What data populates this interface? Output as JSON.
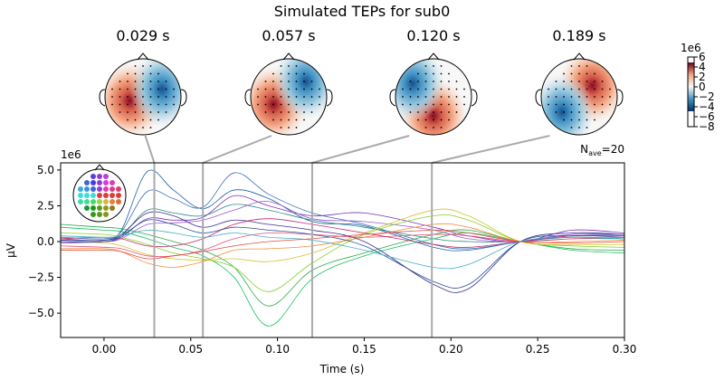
{
  "chart_data": {
    "type": "line",
    "title": "Simulated TEPs for sub0",
    "xlabel": "Time (s)",
    "ylabel": "µV",
    "y_offset_label": "1e6",
    "nave_label": "N",
    "nave_sub": "ave",
    "nave_value": "=20",
    "xlim": [
      -0.025,
      0.3
    ],
    "ylim": [
      -6.7,
      5.5
    ],
    "x_ticks": [
      "0.00",
      "0.05",
      "0.10",
      "0.15",
      "0.20",
      "0.25",
      "0.30"
    ],
    "y_ticks": [
      "5.0",
      "2.5",
      "0.0",
      "−2.5",
      "−5.0"
    ],
    "grid": false,
    "x": [
      -0.025,
      0,
      0.01,
      0.025,
      0.04,
      0.057,
      0.075,
      0.095,
      0.12,
      0.15,
      0.19,
      0.21,
      0.24,
      0.27,
      0.3
    ],
    "series": [
      {
        "color": "#1f5fa8",
        "values": [
          0.2,
          0.1,
          0.8,
          4.9,
          3.6,
          2.3,
          3.6,
          3.0,
          1.4,
          1.1,
          -0.4,
          -0.6,
          0.0,
          0.3,
          0.2
        ]
      },
      {
        "color": "#3a6fb5",
        "values": [
          0.3,
          0.2,
          0.7,
          3.5,
          3.0,
          2.4,
          4.8,
          3.3,
          2.0,
          1.2,
          -0.2,
          -0.5,
          0.0,
          0.5,
          0.4
        ]
      },
      {
        "color": "#2b8a8a",
        "values": [
          0.0,
          0.0,
          0.4,
          2.2,
          2.0,
          1.8,
          2.6,
          2.2,
          1.5,
          1.0,
          0.2,
          0.0,
          0.0,
          0.2,
          0.2
        ]
      },
      {
        "color": "#7b2fbf",
        "values": [
          -0.1,
          0.0,
          0.3,
          1.6,
          1.5,
          1.7,
          3.2,
          2.5,
          1.8,
          2.0,
          1.0,
          0.4,
          0.0,
          0.8,
          0.6
        ]
      },
      {
        "color": "#9b59d0",
        "values": [
          0.0,
          0.0,
          0.2,
          1.2,
          1.3,
          1.5,
          2.2,
          2.8,
          1.6,
          1.4,
          0.8,
          0.2,
          0.0,
          0.5,
          0.5
        ]
      },
      {
        "color": "#2aa84a",
        "values": [
          1.2,
          1.0,
          0.9,
          0.5,
          0.0,
          -0.6,
          -1.8,
          -4.5,
          -2.0,
          -0.8,
          0.5,
          0.8,
          0.0,
          -0.5,
          -0.6
        ]
      },
      {
        "color": "#15c060",
        "values": [
          1.0,
          0.8,
          0.7,
          0.2,
          -0.4,
          -1.0,
          -2.5,
          -5.9,
          -2.6,
          -1.0,
          0.2,
          0.6,
          0.0,
          -0.6,
          -0.8
        ]
      },
      {
        "color": "#7ed321",
        "values": [
          0.6,
          0.5,
          0.3,
          -0.2,
          -0.8,
          -1.2,
          -1.8,
          -3.5,
          -1.5,
          0.5,
          1.8,
          1.5,
          0.0,
          -0.3,
          -0.4
        ]
      },
      {
        "color": "#d4c22a",
        "values": [
          0.0,
          -0.1,
          -0.3,
          -0.9,
          -1.2,
          -1.3,
          -1.2,
          -1.4,
          -0.8,
          0.6,
          2.2,
          1.8,
          0.0,
          -0.2,
          -0.2
        ]
      },
      {
        "color": "#f08c3a",
        "values": [
          -0.5,
          -0.5,
          -0.7,
          -1.5,
          -1.8,
          -1.4,
          -0.6,
          -0.5,
          -0.3,
          0.3,
          1.2,
          1.0,
          0.0,
          0.0,
          0.1
        ]
      },
      {
        "color": "#e8507a",
        "values": [
          -0.3,
          -0.4,
          -0.5,
          -1.0,
          -1.0,
          -0.6,
          0.2,
          0.6,
          0.5,
          0.3,
          0.5,
          0.4,
          0.0,
          0.2,
          0.3
        ]
      },
      {
        "color": "#c82a6a",
        "values": [
          0.2,
          0.3,
          0.2,
          -0.3,
          -0.3,
          0.2,
          1.2,
          1.6,
          1.2,
          0.6,
          -0.2,
          -0.4,
          0.0,
          0.4,
          0.4
        ]
      },
      {
        "color": "#3b2f8f",
        "values": [
          0.1,
          0.1,
          0.5,
          2.0,
          1.8,
          1.0,
          1.5,
          1.2,
          0.8,
          0.0,
          -3.0,
          -3.3,
          0.0,
          0.6,
          0.5
        ]
      },
      {
        "color": "#2a4f9a",
        "values": [
          0.0,
          0.0,
          0.4,
          1.5,
          1.2,
          0.6,
          1.0,
          0.8,
          0.5,
          -0.3,
          -2.8,
          -3.0,
          0.0,
          0.4,
          0.3
        ]
      },
      {
        "color": "#42b0c8",
        "values": [
          0.4,
          0.3,
          0.4,
          0.8,
          0.6,
          0.3,
          0.6,
          0.3,
          0.1,
          -0.6,
          -1.8,
          -1.6,
          0.0,
          0.3,
          0.2
        ]
      },
      {
        "color": "#e54a3c",
        "values": [
          -0.6,
          -0.6,
          -0.7,
          -1.2,
          -1.0,
          -0.7,
          -0.3,
          0.0,
          0.2,
          0.5,
          0.8,
          0.6,
          0.0,
          -0.1,
          0.0
        ]
      }
    ],
    "time_markers": [
      0.029,
      0.057,
      0.12,
      0.189
    ]
  },
  "topomaps": [
    {
      "label": "0.029 s",
      "hot": [
        -0.35,
        0.1
      ],
      "cold": [
        0.5,
        -0.2
      ]
    },
    {
      "label": "0.057 s",
      "hot": [
        -0.4,
        0.2
      ],
      "cold": [
        0.45,
        -0.4
      ]
    },
    {
      "label": "0.120 s",
      "hot": [
        0.0,
        0.5
      ],
      "cold": [
        -0.55,
        -0.35
      ]
    },
    {
      "label": "0.189 s",
      "hot": [
        0.35,
        -0.3
      ],
      "cold": [
        -0.45,
        0.4
      ]
    }
  ],
  "colorbar": {
    "label": "1e6",
    "ticks": [
      "6",
      "4",
      "2",
      "0",
      "−2",
      "−4",
      "−6",
      "−8"
    ],
    "range": [
      -8,
      6
    ],
    "colored_range": [
      -4.9,
      4.9
    ]
  }
}
